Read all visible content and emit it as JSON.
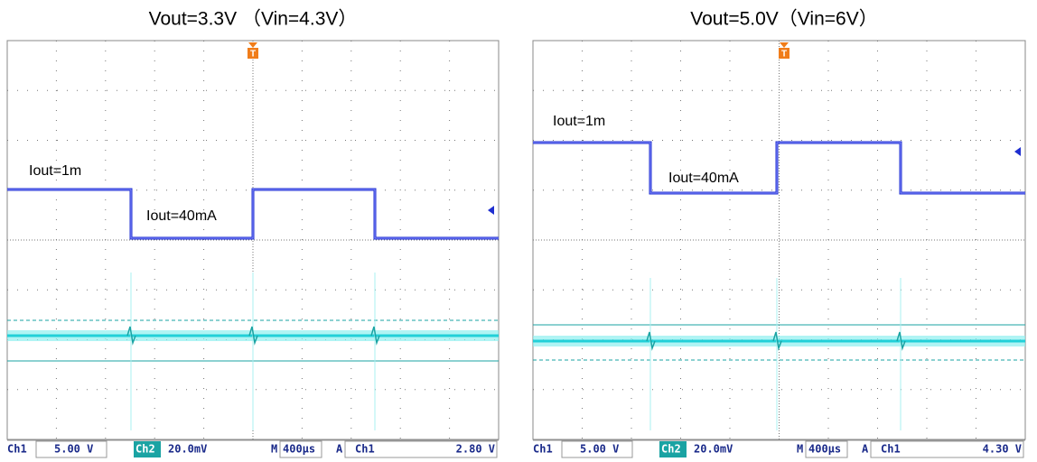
{
  "panels": [
    {
      "title": "Vout=3.3V （Vin=4.3V）",
      "labels": [
        "Iout=1m",
        "Iout=40mA"
      ],
      "status": {
        "ch1": "Ch1",
        "ch1_scale": "5.00 V",
        "ch2": "Ch2",
        "ch2_scale": "20.0mV",
        "timebase_prefix": "M",
        "timebase": "400µs",
        "trigger_prefix": "A",
        "trigger_source": "Ch1",
        "trigger_level": "2.80 V"
      }
    },
    {
      "title": "Vout=5.0V（Vin=6V）",
      "labels": [
        "Iout=1m",
        "Iout=40mA"
      ],
      "status": {
        "ch1": "Ch1",
        "ch1_scale": "5.00 V",
        "ch2": "Ch2",
        "ch2_scale": "20.0mV",
        "timebase_prefix": "M",
        "timebase": "400µs",
        "trigger_prefix": "A",
        "trigger_source": "Ch1",
        "trigger_level": "4.30 V"
      }
    }
  ]
}
